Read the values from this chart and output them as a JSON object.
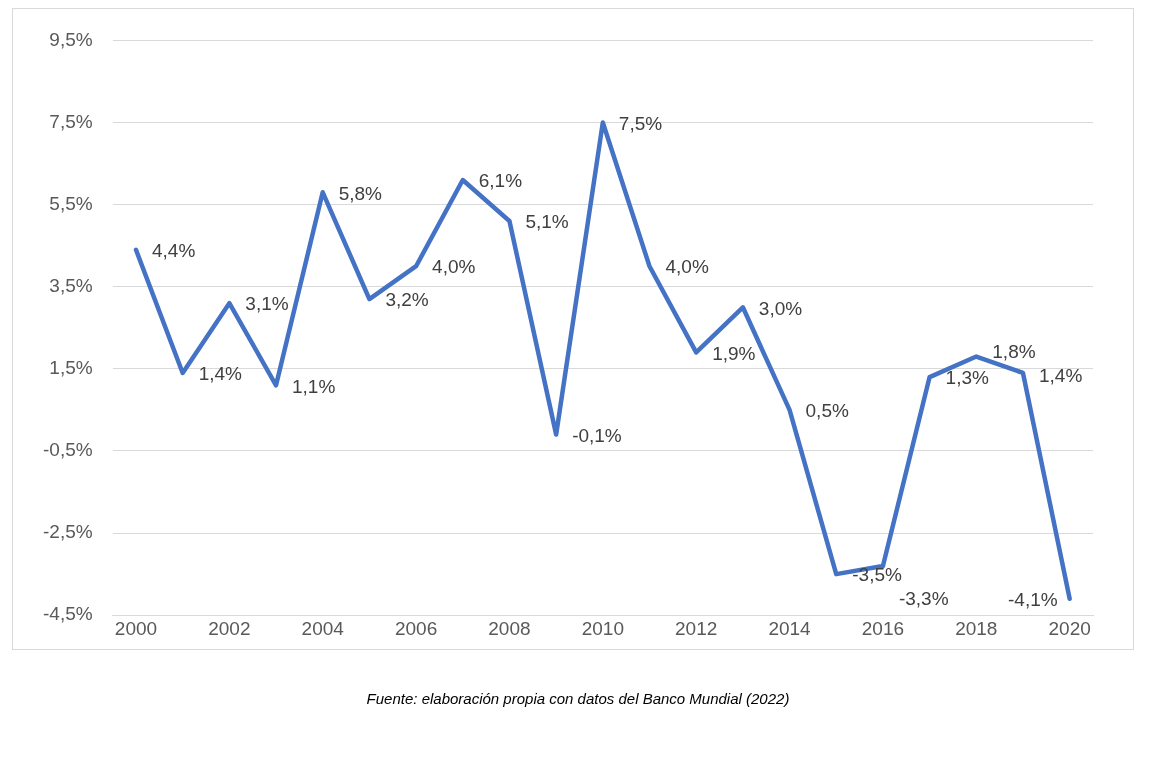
{
  "chart_data": {
    "type": "line",
    "x": [
      2000,
      2001,
      2002,
      2003,
      2004,
      2005,
      2006,
      2007,
      2008,
      2009,
      2010,
      2011,
      2012,
      2013,
      2014,
      2015,
      2016,
      2017,
      2018,
      2019,
      2020
    ],
    "series": [
      {
        "color": "#4472c4",
        "values": [
          4.4,
          1.4,
          3.1,
          1.1,
          5.8,
          3.2,
          4.0,
          6.1,
          5.1,
          -0.1,
          7.5,
          4.0,
          1.9,
          3.0,
          0.5,
          -3.5,
          -3.3,
          1.3,
          1.8,
          1.4,
          -4.1
        ],
        "value_labels": [
          "4,4%",
          "1,4%",
          "3,1%",
          "1,1%",
          "5,8%",
          "3,2%",
          "4,0%",
          "6,1%",
          "5,1%",
          "-0,1%",
          "7,5%",
          "4,0%",
          "1,9%",
          "3,0%",
          "0,5%",
          "-3,5%",
          "-3,3%",
          "1,3%",
          "1,8%",
          "1,4%",
          "-4,1%"
        ]
      }
    ],
    "xlim": [
      1999.5,
      2020.5
    ],
    "xticks": [
      2000,
      2002,
      2004,
      2006,
      2008,
      2010,
      2012,
      2014,
      2016,
      2018,
      2020
    ],
    "ylim": [
      -4.5,
      9.5
    ],
    "yticks": [
      {
        "value": -4.5,
        "label": "-4,5%"
      },
      {
        "value": -2.5,
        "label": "-2,5%"
      },
      {
        "value": -0.5,
        "label": "-0,5%"
      },
      {
        "value": 1.5,
        "label": "1,5%"
      },
      {
        "value": 3.5,
        "label": "3,5%"
      },
      {
        "value": 5.5,
        "label": "5,5%"
      },
      {
        "value": 7.5,
        "label": "7,5%"
      },
      {
        "value": 9.5,
        "label": "9,5%"
      }
    ],
    "grid": "y",
    "legend": false,
    "marker": "none",
    "line_style": "solid",
    "annotations": [
      "Fuente: elaboración propia con datos del Banco Mundial (2022)"
    ]
  }
}
